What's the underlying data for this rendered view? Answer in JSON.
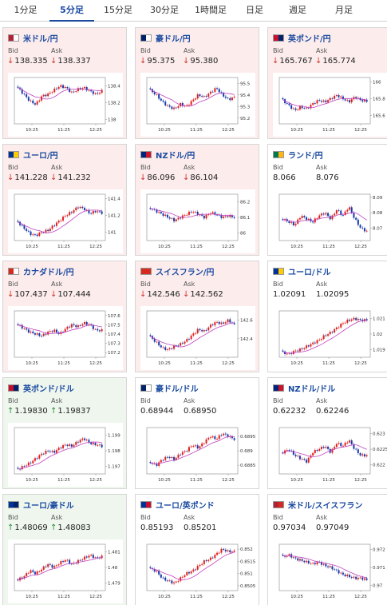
{
  "tabs": [
    "1分足",
    "5分足",
    "15分足",
    "30分足",
    "1時間足",
    "日足",
    "週足",
    "月足"
  ],
  "active_tab": 1,
  "labels": {
    "bid": "Bid",
    "ask": "Ask"
  },
  "colors": {
    "up_arrow": "#2c8a3a",
    "down_arrow": "#d0322a",
    "candle_up": "#e02020",
    "candle_down": "#1a3aa8",
    "avg_line": "#c040c0"
  },
  "cards": [
    {
      "pair": "米ドル/円",
      "trend": "down",
      "bid": "138.335",
      "ask": "138.337",
      "flag": [
        "#b22234",
        "#ffffff"
      ],
      "chart_data": {
        "type": "candlestick",
        "x_ticks": [
          "10:25",
          "11:25",
          "12:25"
        ],
        "y_ticks": [
          "138.4",
          "138.2",
          "138"
        ],
        "ylim": [
          137.95,
          138.5
        ],
        "series": [
          138.38,
          138.3,
          138.22,
          138.18,
          138.28,
          138.3,
          138.35,
          138.4,
          138.38,
          138.32,
          138.36,
          138.38,
          138.34,
          138.3,
          138.34
        ]
      }
    },
    {
      "pair": "豪ドル/円",
      "trend": "down",
      "bid": "95.375",
      "ask": "95.380",
      "flag": [
        "#012169",
        "#ffffff"
      ],
      "chart_data": {
        "type": "candlestick",
        "x_ticks": [
          "10:25",
          "11:25",
          "12:25"
        ],
        "y_ticks": [
          "95.5",
          "95.4",
          "95.3",
          "95.2"
        ],
        "ylim": [
          95.15,
          95.55
        ],
        "series": [
          95.44,
          95.4,
          95.34,
          95.3,
          95.28,
          95.32,
          95.3,
          95.35,
          95.4,
          95.38,
          95.42,
          95.46,
          95.4,
          95.36,
          95.38
        ]
      }
    },
    {
      "pair": "英ポンド/円",
      "trend": "down",
      "bid": "165.767",
      "ask": "165.774",
      "flag": [
        "#c8102e",
        "#012169"
      ],
      "chart_data": {
        "type": "candlestick",
        "x_ticks": [
          "10:25",
          "11:25",
          "12:25"
        ],
        "y_ticks": [
          "166",
          "165.8",
          "165.6"
        ],
        "ylim": [
          165.5,
          166.05
        ],
        "series": [
          165.78,
          165.72,
          165.66,
          165.7,
          165.68,
          165.74,
          165.78,
          165.76,
          165.8,
          165.84,
          165.8,
          165.76,
          165.82,
          165.78,
          165.77
        ]
      }
    },
    {
      "pair": "ユーロ/円",
      "trend": "down",
      "bid": "141.228",
      "ask": "141.232",
      "flag": [
        "#003399",
        "#ffcc00"
      ],
      "chart_data": {
        "type": "candlestick",
        "x_ticks": [
          "10:25",
          "11:25",
          "12:25"
        ],
        "y_ticks": [
          "141.4",
          "141.2",
          "141"
        ],
        "ylim": [
          140.9,
          141.45
        ],
        "series": [
          141.12,
          141.05,
          140.98,
          140.96,
          141.0,
          141.02,
          141.08,
          141.14,
          141.2,
          141.24,
          141.3,
          141.28,
          141.22,
          141.25,
          141.23
        ]
      }
    },
    {
      "pair": "NZドル/円",
      "trend": "down",
      "bid": "86.096",
      "ask": "86.104",
      "flag": [
        "#00247d",
        "#cc142b"
      ],
      "chart_data": {
        "type": "candlestick",
        "x_ticks": [
          "10:25",
          "11:25",
          "12:25"
        ],
        "y_ticks": [
          "86.2",
          "86.1",
          "86"
        ],
        "ylim": [
          85.95,
          86.25
        ],
        "series": [
          86.16,
          86.14,
          86.12,
          86.1,
          86.08,
          86.1,
          86.12,
          86.14,
          86.12,
          86.1,
          86.13,
          86.12,
          86.1,
          86.11,
          86.1
        ]
      }
    },
    {
      "pair": "ランド/円",
      "trend": "none",
      "bid": "8.066",
      "ask": "8.076",
      "flag": [
        "#007a4d",
        "#ffb612"
      ],
      "chart_data": {
        "type": "candlestick",
        "x_ticks": [
          "10:25",
          "11:25",
          "12:25"
        ],
        "y_ticks": [
          "8.09",
          "8.08",
          "8.07"
        ],
        "ylim": [
          8.062,
          8.092
        ],
        "series": [
          8.076,
          8.074,
          8.072,
          8.078,
          8.076,
          8.074,
          8.078,
          8.08,
          8.076,
          8.082,
          8.078,
          8.084,
          8.076,
          8.07,
          8.068
        ]
      }
    },
    {
      "pair": "カナダドル/円",
      "trend": "down",
      "bid": "107.437",
      "ask": "107.444",
      "flag": [
        "#d52b1e",
        "#ffffff"
      ],
      "chart_data": {
        "type": "candlestick",
        "x_ticks": [
          "10:25",
          "11:25",
          "12:25"
        ],
        "y_ticks": [
          "107.6",
          "107.5",
          "107.4",
          "107.3",
          "107.2"
        ],
        "ylim": [
          107.15,
          107.65
        ],
        "series": [
          107.5,
          107.46,
          107.42,
          107.4,
          107.38,
          107.42,
          107.44,
          107.4,
          107.46,
          107.5,
          107.48,
          107.52,
          107.5,
          107.44,
          107.44
        ]
      }
    },
    {
      "pair": "スイスフラン/円",
      "trend": "down",
      "bid": "142.546",
      "ask": "142.562",
      "flag": [
        "#d52b1e",
        "#d52b1e"
      ],
      "chart_data": {
        "type": "candlestick",
        "x_ticks": [
          "10:25",
          "11:25",
          "12:25"
        ],
        "y_ticks": [
          "142.6",
          "142.4"
        ],
        "ylim": [
          142.2,
          142.7
        ],
        "series": [
          142.42,
          142.36,
          142.3,
          142.28,
          142.32,
          142.34,
          142.38,
          142.44,
          142.5,
          142.48,
          142.54,
          142.58,
          142.56,
          142.6,
          142.55
        ]
      }
    },
    {
      "pair": "ユーロ/ドル",
      "trend": "none",
      "bid": "1.02091",
      "ask": "1.02095",
      "flag": [
        "#003399",
        "#ffcc00"
      ],
      "chart_data": {
        "type": "candlestick",
        "x_ticks": [
          "10:25",
          "11:25",
          "12:25"
        ],
        "y_ticks": [
          "1.021",
          "1.02",
          "1.019"
        ],
        "ylim": [
          1.0185,
          1.0215
        ],
        "series": [
          1.0188,
          1.0187,
          1.0189,
          1.019,
          1.0192,
          1.0194,
          1.0196,
          1.0199,
          1.0201,
          1.0204,
          1.0207,
          1.0209,
          1.021,
          1.0209,
          1.0209
        ]
      }
    },
    {
      "pair": "英ポンド/ドル",
      "trend": "up",
      "bid": "1.19830",
      "ask": "1.19837",
      "flag": [
        "#c8102e",
        "#012169"
      ],
      "chart_data": {
        "type": "candlestick",
        "x_ticks": [
          "10:25",
          "11:25",
          "12:25"
        ],
        "y_ticks": [
          "1.199",
          "1.198",
          "1.197"
        ],
        "ylim": [
          1.1965,
          1.1995
        ],
        "series": [
          1.1968,
          1.197,
          1.1972,
          1.1975,
          1.1978,
          1.198,
          1.1979,
          1.1982,
          1.1984,
          1.1983,
          1.1986,
          1.1988,
          1.1985,
          1.1984,
          1.1983
        ]
      }
    },
    {
      "pair": "豪ドル/ドル",
      "trend": "none",
      "bid": "0.68944",
      "ask": "0.68950",
      "flag": [
        "#012169",
        "#ffffff"
      ],
      "chart_data": {
        "type": "candlestick",
        "x_ticks": [
          "10:25",
          "11:25",
          "12:25"
        ],
        "y_ticks": [
          "0.6895",
          "0.689",
          "0.6885"
        ],
        "ylim": [
          0.6882,
          0.6898
        ],
        "series": [
          0.6886,
          0.6885,
          0.6887,
          0.6888,
          0.6887,
          0.6889,
          0.689,
          0.6892,
          0.6891,
          0.6893,
          0.6895,
          0.6894,
          0.6896,
          0.6895,
          0.6894
        ]
      }
    },
    {
      "pair": "NZドル/ドル",
      "trend": "none",
      "bid": "0.62232",
      "ask": "0.62246",
      "flag": [
        "#00247d",
        "#cc142b"
      ],
      "chart_data": {
        "type": "candlestick",
        "x_ticks": [
          "10:25",
          "11:25",
          "12:25"
        ],
        "y_ticks": [
          "0.623",
          "0.6225",
          "0.622"
        ],
        "ylim": [
          0.6217,
          0.6232
        ],
        "series": [
          0.6224,
          0.6225,
          0.6223,
          0.6222,
          0.6221,
          0.6224,
          0.6225,
          0.6226,
          0.6224,
          0.6227,
          0.6226,
          0.6228,
          0.6225,
          0.6223,
          0.6223
        ]
      }
    },
    {
      "pair": "ユーロ/豪ドル",
      "trend": "up",
      "bid": "1.48069",
      "ask": "1.48083",
      "flag": [
        "#003399",
        "#012169"
      ],
      "chart_data": {
        "type": "candlestick",
        "x_ticks": [
          "10:25",
          "11:25",
          "12:25"
        ],
        "y_ticks": [
          "1.481",
          "1.48",
          "1.479"
        ],
        "ylim": [
          1.4785,
          1.4815
        ],
        "series": [
          1.4792,
          1.4794,
          1.4798,
          1.4796,
          1.4799,
          1.4802,
          1.48,
          1.4803,
          1.4805,
          1.4802,
          1.4804,
          1.4806,
          1.4808,
          1.4806,
          1.4807
        ]
      }
    },
    {
      "pair": "ユーロ/英ポンド",
      "trend": "none",
      "bid": "0.85193",
      "ask": "0.85201",
      "flag": [
        "#003399",
        "#c8102e"
      ],
      "chart_data": {
        "type": "candlestick",
        "x_ticks": [
          "10:25",
          "11:25",
          "12:25"
        ],
        "y_ticks": [
          "0.852",
          "0.8515",
          "0.851",
          "0.8505"
        ],
        "ylim": [
          0.8503,
          0.8522
        ],
        "series": [
          0.8512,
          0.8511,
          0.8508,
          0.8507,
          0.8506,
          0.8508,
          0.851,
          0.8511,
          0.8513,
          0.8515,
          0.8516,
          0.8518,
          0.852,
          0.8519,
          0.8519
        ]
      }
    },
    {
      "pair": "米ドル/スイスフラン",
      "trend": "none",
      "bid": "0.97034",
      "ask": "0.97049",
      "flag": [
        "#b22234",
        "#d52b1e"
      ],
      "chart_data": {
        "type": "candlestick",
        "x_ticks": [
          "10:25",
          "11:25",
          "12:25"
        ],
        "y_ticks": [
          "0.972",
          "0.971",
          "0.97"
        ],
        "ylim": [
          0.9697,
          0.9723
        ],
        "series": [
          0.9716,
          0.9717,
          0.9715,
          0.9714,
          0.9713,
          0.9712,
          0.9713,
          0.9711,
          0.971,
          0.9708,
          0.9706,
          0.9705,
          0.9704,
          0.9704,
          0.9703
        ]
      }
    }
  ]
}
